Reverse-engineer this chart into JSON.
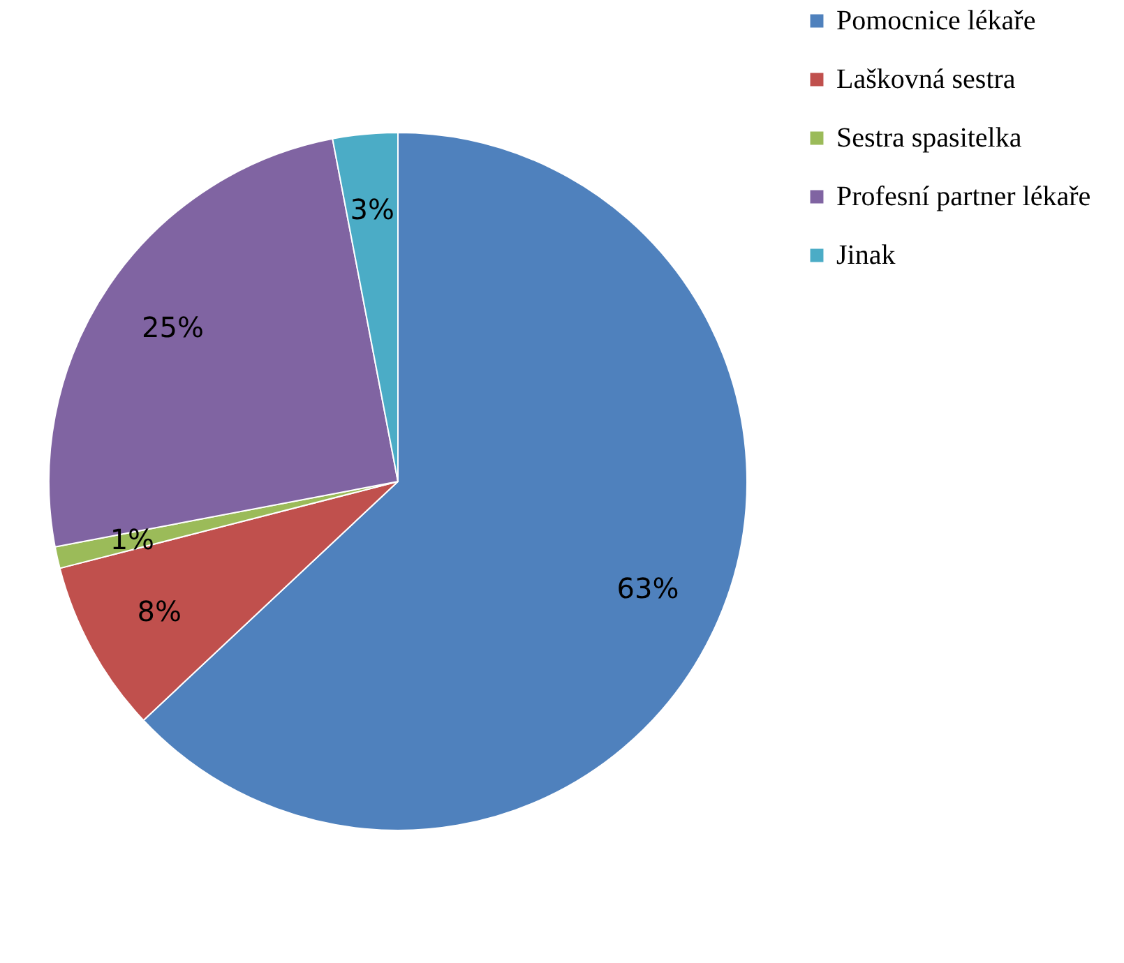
{
  "chart_data": {
    "type": "pie",
    "categories": [
      "Pomocnice lékaře",
      "Laškovná sestra",
      "Sestra spasitelka",
      "Profesní partner lékaře",
      "Jinak"
    ],
    "values": [
      63,
      8,
      1,
      25,
      3
    ],
    "colors": [
      "#4f81bd",
      "#c0504d",
      "#9bbb59",
      "#8064a2",
      "#4bacc6"
    ],
    "value_labels": [
      "63%",
      "8%",
      "1%",
      "25%",
      "3%"
    ],
    "legend": "right"
  }
}
